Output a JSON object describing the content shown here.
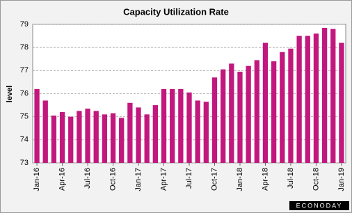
{
  "chart_data": {
    "type": "bar",
    "title": "Capacity Utilization Rate",
    "y_label": "level",
    "categories": [
      "Jan-16",
      null,
      null,
      "Apr-16",
      null,
      null,
      "Jul-16",
      null,
      null,
      "Oct-16",
      null,
      null,
      "Jan-17",
      null,
      null,
      "Apr-17",
      null,
      null,
      "Jul-17",
      null,
      null,
      "Oct-17",
      null,
      null,
      "Jan-18",
      null,
      null,
      "Apr-18",
      null,
      null,
      "Jul-18",
      null,
      null,
      "Oct-18",
      null,
      null,
      "Jan-19"
    ],
    "values": [
      76.2,
      75.7,
      75.05,
      75.2,
      75.0,
      75.25,
      75.35,
      75.25,
      75.1,
      75.15,
      74.95,
      75.6,
      75.4,
      75.1,
      75.5,
      76.2,
      76.2,
      76.2,
      76.05,
      75.7,
      75.65,
      76.7,
      77.05,
      77.3,
      76.95,
      77.2,
      77.45,
      78.2,
      77.4,
      77.8,
      77.95,
      78.5,
      78.5,
      78.6,
      78.85,
      78.8,
      78.2
    ],
    "color": "#c2187e",
    "ylim": [
      73,
      79
    ],
    "yticks": [
      73,
      74,
      75,
      76,
      77,
      78,
      79
    ],
    "grid": true,
    "logo": "ECONODAY"
  }
}
